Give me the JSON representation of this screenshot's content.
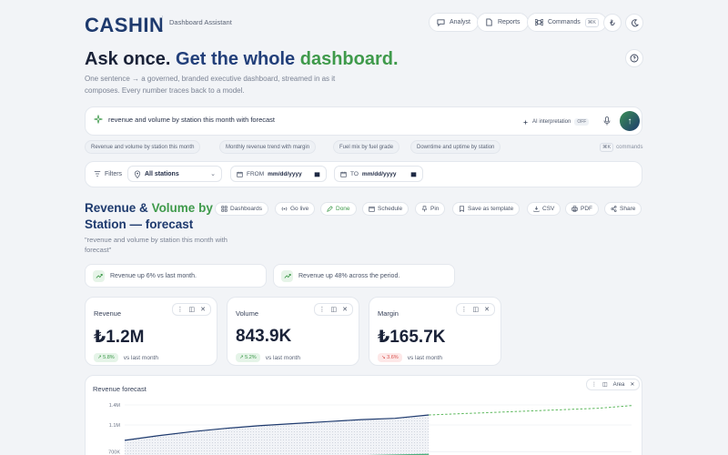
{
  "header": {
    "logo": "CASHIN",
    "subtitle": "Dashboard Assistant",
    "nav": [
      {
        "label": "Analyst",
        "icon": "chat-icon"
      },
      {
        "label": "Reports",
        "icon": "document-icon"
      },
      {
        "label": "Commands",
        "icon": "command-icon",
        "shortcut": "⌘K"
      }
    ],
    "currency_symbol": "₺",
    "theme_icon": "moon-icon"
  },
  "hero": {
    "title_part1": "Ask once.",
    "title_part2": "Get the whole",
    "title_part3": "dashboard.",
    "subtitle": "One sentence → a governed, branded executive dashboard, streamed in as it composes. Every number traces back to a model."
  },
  "prompt": {
    "value": "revenue and volume by station this month with forecast",
    "ai_interpretation_label": "AI interpretation",
    "ai_interpretation_state": "OFF"
  },
  "suggestions": [
    "Revenue and volume by station this month",
    "Monthly revenue trend with margin",
    "Fuel mix by fuel grade",
    "Downtime and uptime by station"
  ],
  "commands_hint": {
    "shortcut": "⌘K",
    "label": "commands"
  },
  "filters": {
    "label": "Filters",
    "station": "All stations",
    "from_label": "FROM",
    "from_value": "mm/dd/yyyy",
    "to_label": "TO",
    "to_value": "mm/dd/yyyy"
  },
  "section": {
    "title_a": "Revenue",
    "title_b": "&",
    "title_c": "Volume by",
    "title_d": "Station — forecast",
    "query": "\"revenue and volume by station this month with forecast\""
  },
  "actions": [
    {
      "label": "Dashboards",
      "icon": "grid-icon"
    },
    {
      "label": "Go live",
      "icon": "broadcast-icon"
    },
    {
      "label": "Done",
      "icon": "pencil-icon"
    },
    {
      "label": "Schedule",
      "icon": "calendar-icon"
    },
    {
      "label": "Pin",
      "icon": "pin-icon"
    },
    {
      "label": "Save as template",
      "icon": "bookmark-icon"
    },
    {
      "label": "CSV",
      "icon": "download-icon"
    },
    {
      "label": "PDF",
      "icon": "printer-icon"
    },
    {
      "label": "Share",
      "icon": "share-icon"
    }
  ],
  "insights": [
    "Revenue up 6% vs last month.",
    "Revenue up 48% across the period."
  ],
  "kpis": [
    {
      "label": "Revenue",
      "value": "₺1.2M",
      "delta": "↗ 5.8%",
      "trend": "up",
      "compare": "vs last month"
    },
    {
      "label": "Volume",
      "value": "843.9K",
      "delta": "↗ 5.2%",
      "trend": "up",
      "compare": "vs last month"
    },
    {
      "label": "Margin",
      "value": "₺165.7K",
      "delta": "↘ 3.6%",
      "trend": "down",
      "compare": "vs last month"
    }
  ],
  "chart": {
    "title": "Revenue forecast",
    "type_label": "Area"
  },
  "chart_data": {
    "type": "area",
    "title": "Revenue forecast",
    "ytick_labels": [
      "1.4M",
      "1.1M",
      "700K"
    ],
    "ylim": [
      0,
      1400000
    ],
    "x": [
      0,
      1,
      2,
      3,
      4,
      5,
      6,
      7,
      8,
      9
    ],
    "series": [
      {
        "values": [
          870000,
          940000,
          1000000,
          1050000,
          1090000,
          1120000,
          1150000,
          1180000,
          1200000,
          1250000
        ],
        "color": "#1e3a6e"
      },
      {
        "values": [
          560000,
          570000,
          590000,
          600000,
          610000,
          620000,
          630000,
          640000,
          650000,
          660000
        ],
        "color": "#4caf7d"
      }
    ],
    "forecast_x": [
      9,
      10,
      11,
      12,
      13,
      14,
      15
    ],
    "forecast_values": [
      1250000,
      1270000,
      1290000,
      1310000,
      1330000,
      1350000,
      1390000
    ],
    "forecast_color": "#5cb85c",
    "grid": true
  },
  "colors": {
    "brand": "#1e3a6e",
    "accent": "#3f9a4b",
    "danger": "#d9534f"
  }
}
